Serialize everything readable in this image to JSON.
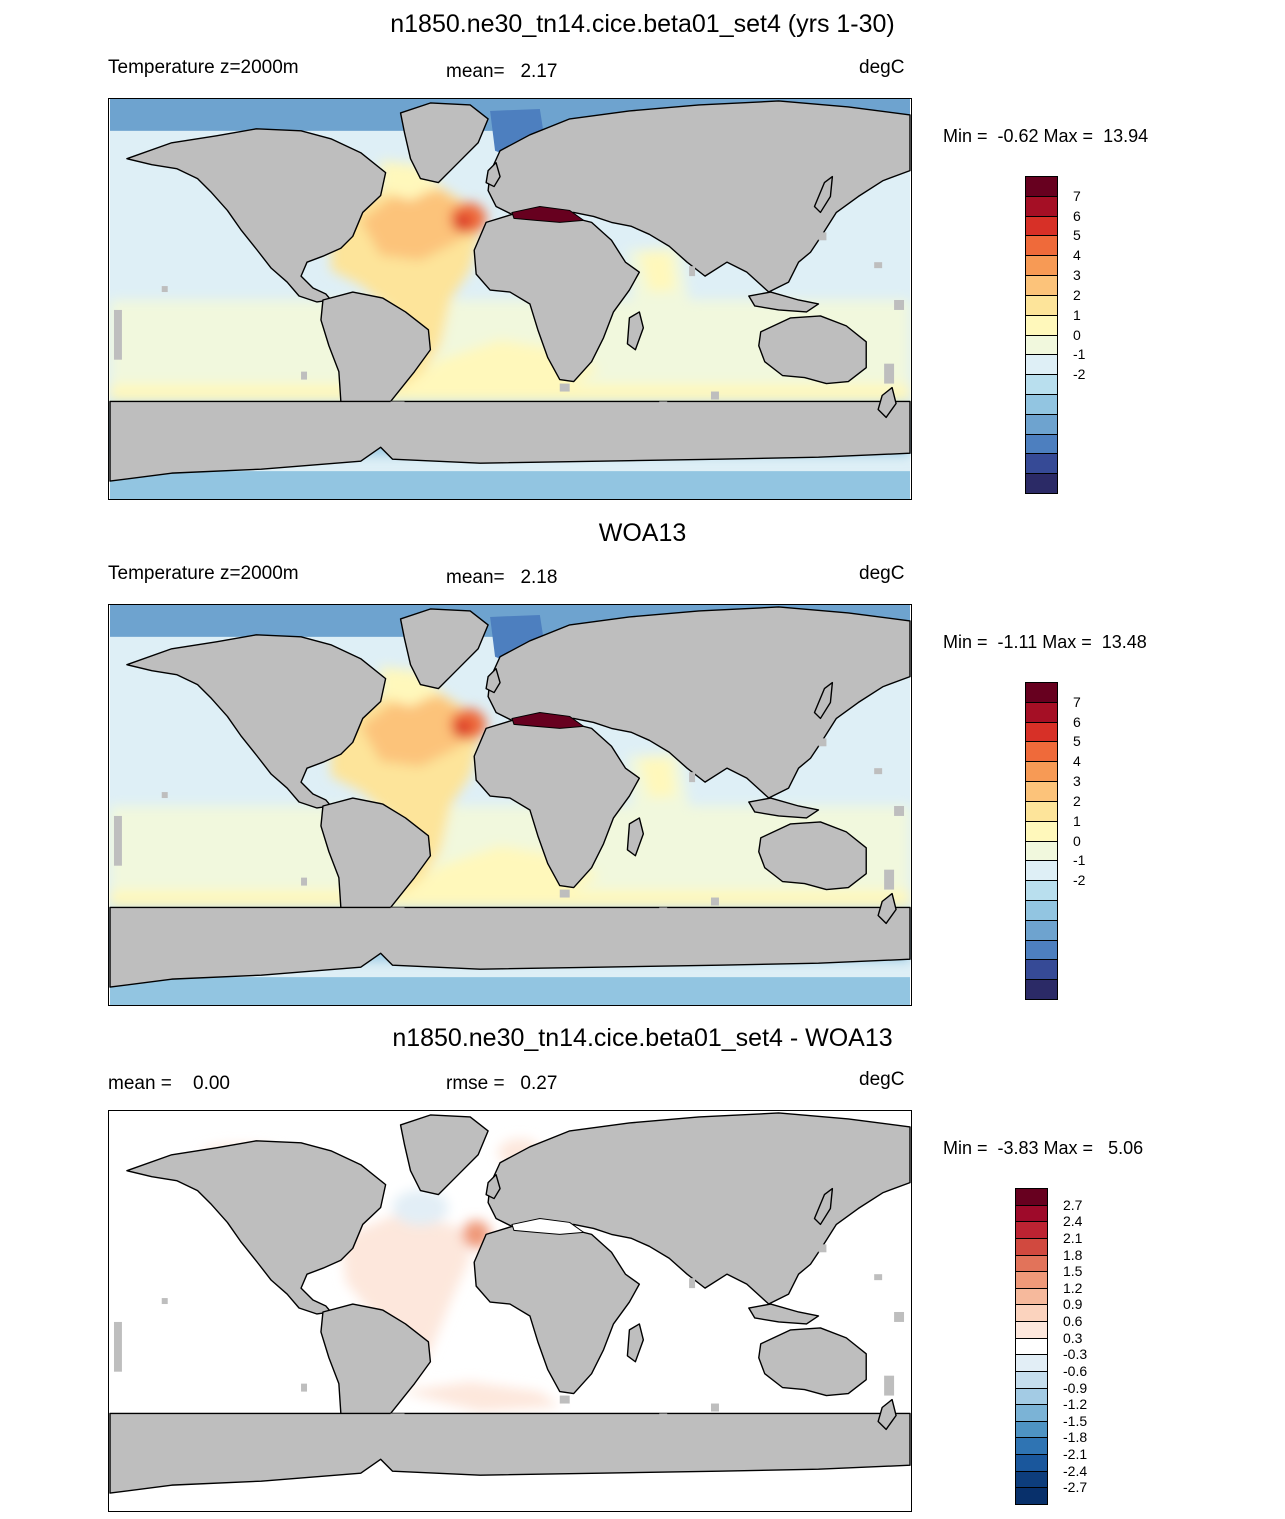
{
  "panels": [
    {
      "title": "n1850.ne30_tn14.cice.beta01_set4 (yrs 1-30)",
      "left_label": "Temperature z=2000m",
      "center_label": "mean=   2.17",
      "units": "degC",
      "minmax": "Min =  -0.62 Max =  13.94",
      "kind": "abs"
    },
    {
      "title": "WOA13",
      "left_label": "Temperature z=2000m",
      "center_label": "mean=   2.18",
      "units": "degC",
      "minmax": "Min =  -1.11 Max =  13.48",
      "kind": "abs"
    },
    {
      "title": "n1850.ne30_tn14.cice.beta01_set4 - WOA13",
      "left_label": "mean =    0.00",
      "center_label": "rmse =   0.27",
      "units": "degC",
      "minmax": "Min =  -3.83 Max =   5.06",
      "kind": "diff"
    }
  ],
  "colorbars": {
    "abs": {
      "labels": [
        "7",
        "6",
        "5",
        "4",
        "3",
        "2",
        "1",
        "0",
        "-1",
        "-2"
      ],
      "colors": [
        "#67001f",
        "#a50f25",
        "#d73027",
        "#ef6a3a",
        "#f79a55",
        "#fcc37a",
        "#fde49a",
        "#fff8bb",
        "#f1f8dd",
        "#deeff6",
        "#b9dfee",
        "#92c5e1",
        "#6ea3cf",
        "#4d7fbf",
        "#364a96",
        "#2b2a66"
      ]
    },
    "diff": {
      "labels": [
        "2.7",
        "2.4",
        "2.1",
        "1.8",
        "1.5",
        "1.2",
        "0.9",
        "0.6",
        "0.3",
        "-0.3",
        "-0.6",
        "-0.9",
        "-1.2",
        "-1.5",
        "-1.8",
        "-2.1",
        "-2.4",
        "-2.7"
      ],
      "colors": [
        "#67001f",
        "#9e0a2a",
        "#bd2332",
        "#d1493f",
        "#e2735a",
        "#ef9979",
        "#f6b99c",
        "#fbd3be",
        "#fde7dc",
        "#ffffff",
        "#e2eef6",
        "#c5deee",
        "#a3cbe4",
        "#7bb3d6",
        "#4e93c3",
        "#2f74b3",
        "#1a579c",
        "#0d3d7c",
        "#08306b"
      ]
    }
  },
  "colors": {
    "land": "#bebebe",
    "coast": "#000000"
  }
}
